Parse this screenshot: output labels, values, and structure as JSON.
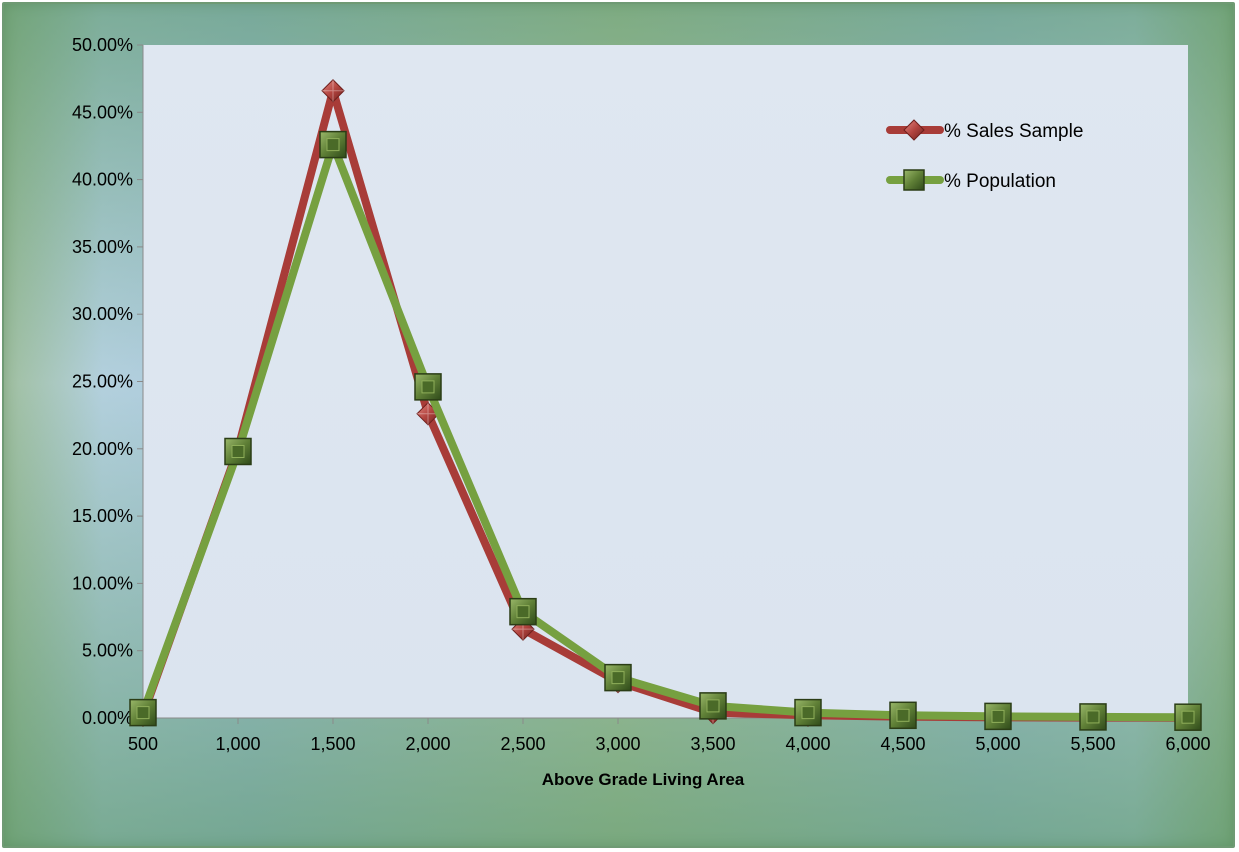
{
  "chart_data": {
    "type": "line",
    "title": "",
    "xlabel": "Above Grade Living Area",
    "ylabel": "",
    "x": [
      500,
      1000,
      1500,
      2000,
      2500,
      3000,
      3500,
      4000,
      4500,
      5000,
      5500,
      6000
    ],
    "x_tick_labels": [
      "500",
      "1,000",
      "1,500",
      "2,000",
      "2,500",
      "3,000",
      "3,500",
      "4,000",
      "4,500",
      "5,000",
      "5,500",
      "6,000"
    ],
    "ylim": [
      0,
      0.5
    ],
    "y_ticks": [
      0,
      0.05,
      0.1,
      0.15,
      0.2,
      0.25,
      0.3,
      0.35,
      0.4,
      0.45,
      0.5
    ],
    "y_tick_labels": [
      "0.00%",
      "5.00%",
      "10.00%",
      "15.00%",
      "20.00%",
      "25.00%",
      "30.00%",
      "35.00%",
      "40.00%",
      "45.00%",
      "50.00%"
    ],
    "grid": false,
    "legend_position": "top-right",
    "series": [
      {
        "name": "% Sales Sample",
        "color": "#a83c38",
        "marker": "diamond",
        "values": [
          0.002,
          0.2,
          0.466,
          0.226,
          0.066,
          0.027,
          0.004,
          0.002,
          0.001,
          0.0005,
          0.0003,
          0.0002
        ]
      },
      {
        "name": "% Population",
        "color": "#76a040",
        "marker": "square",
        "values": [
          0.004,
          0.198,
          0.426,
          0.246,
          0.079,
          0.03,
          0.009,
          0.004,
          0.002,
          0.0012,
          0.0008,
          0.0006
        ]
      }
    ]
  }
}
